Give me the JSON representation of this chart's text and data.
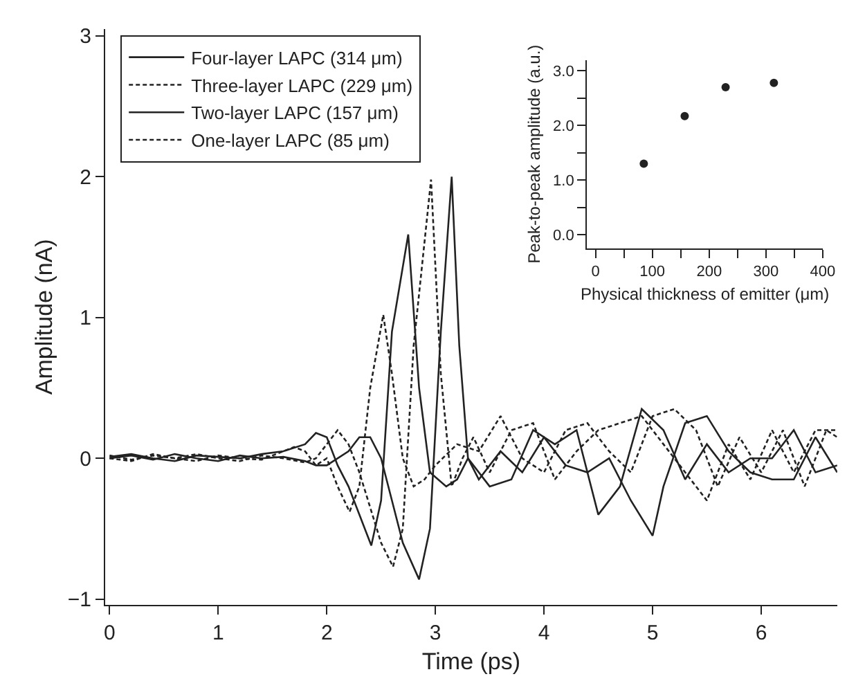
{
  "chart_data": [
    {
      "type": "line",
      "xlabel": "Time (ps)",
      "ylabel": "Amplitude (nA)",
      "xlim": [
        -0.04,
        6.7
      ],
      "ylim": [
        -1.04,
        3.05
      ],
      "xticks": [
        0,
        1,
        2,
        3,
        4,
        5,
        6
      ],
      "yticks": [
        {
          "value": -1,
          "label": "−1"
        },
        0,
        1,
        2,
        3
      ],
      "legend": "top left",
      "marker": "none",
      "series": [
        {
          "name": "Four-layer LAPC (314 μm)",
          "color": "#222222",
          "line_style": "solid",
          "x": [
            0,
            0.2,
            0.4,
            0.6,
            0.8,
            1.0,
            1.2,
            1.4,
            1.6,
            1.8,
            1.9,
            2.0,
            2.2,
            2.3,
            2.4,
            2.5,
            2.6,
            2.7,
            2.85,
            2.95,
            3.05,
            3.15,
            3.22,
            3.3,
            3.4,
            3.6,
            3.8,
            4.0,
            4.2,
            4.4,
            4.6,
            4.8,
            5.0,
            5.1,
            5.3,
            5.5,
            5.7,
            5.9,
            6.1,
            6.3,
            6.5,
            6.7
          ],
          "values": [
            0.0,
            0.02,
            -0.01,
            0.03,
            0.0,
            -0.02,
            0.02,
            0.0,
            0.01,
            -0.02,
            -0.05,
            -0.05,
            0.05,
            0.15,
            0.15,
            0.0,
            -0.3,
            -0.6,
            -0.86,
            -0.5,
            0.9,
            2.0,
            0.8,
            0.0,
            -0.15,
            0.05,
            -0.1,
            0.15,
            -0.05,
            -0.1,
            0.0,
            -0.3,
            -0.55,
            -0.2,
            0.25,
            0.3,
            0.05,
            -0.1,
            -0.15,
            -0.15,
            0.15,
            -0.1
          ]
        },
        {
          "name": "Three-layer LAPC (229 μm)",
          "color": "#222222",
          "line_style": "dashed",
          "x": [
            0,
            0.2,
            0.4,
            0.6,
            0.8,
            1.0,
            1.2,
            1.4,
            1.6,
            1.8,
            1.9,
            2.0,
            2.1,
            2.2,
            2.3,
            2.4,
            2.5,
            2.61,
            2.7,
            2.8,
            2.96,
            3.05,
            3.15,
            3.25,
            3.35,
            3.5,
            3.7,
            3.9,
            4.1,
            4.3,
            4.5,
            4.7,
            4.9,
            5.1,
            5.3,
            5.5,
            5.7,
            5.9,
            6.1,
            6.3,
            6.5,
            6.7
          ],
          "values": [
            0.02,
            -0.01,
            0.02,
            0.0,
            0.03,
            0.0,
            -0.02,
            0.02,
            0.0,
            -0.03,
            0.0,
            0.1,
            0.2,
            0.1,
            -0.1,
            -0.35,
            -0.6,
            -0.77,
            -0.5,
            0.8,
            1.98,
            0.6,
            -0.2,
            0.0,
            0.15,
            -0.1,
            0.2,
            0.25,
            -0.15,
            0.05,
            0.2,
            0.25,
            0.3,
            0.1,
            -0.1,
            -0.3,
            0.1,
            -0.15,
            0.2,
            -0.1,
            0.2,
            0.2
          ]
        },
        {
          "name": "Two-layer LAPC (157 μm)",
          "color": "#222222",
          "line_style": "solid",
          "x": [
            0,
            0.2,
            0.4,
            0.6,
            0.8,
            1.0,
            1.2,
            1.4,
            1.6,
            1.8,
            1.9,
            2.0,
            2.1,
            2.2,
            2.3,
            2.41,
            2.5,
            2.6,
            2.75,
            2.85,
            2.95,
            3.1,
            3.2,
            3.3,
            3.5,
            3.7,
            3.9,
            4.1,
            4.3,
            4.5,
            4.7,
            4.9,
            5.1,
            5.3,
            5.5,
            5.7,
            5.9,
            6.1,
            6.3,
            6.5,
            6.7
          ],
          "values": [
            0.01,
            0.03,
            0.0,
            -0.02,
            0.02,
            0.01,
            0.0,
            0.03,
            0.05,
            0.1,
            0.18,
            0.15,
            -0.05,
            -0.2,
            -0.4,
            -0.62,
            -0.3,
            0.9,
            1.59,
            0.5,
            -0.1,
            -0.2,
            -0.15,
            0.0,
            -0.2,
            -0.15,
            0.2,
            0.1,
            0.2,
            -0.4,
            -0.2,
            0.35,
            0.2,
            -0.15,
            0.1,
            -0.1,
            0.0,
            0.0,
            0.2,
            -0.1,
            -0.05
          ]
        },
        {
          "name": "One-layer LAPC (85 μm)",
          "color": "#222222",
          "line_style": "dashed",
          "x": [
            0,
            0.2,
            0.4,
            0.6,
            0.8,
            1.0,
            1.2,
            1.4,
            1.6,
            1.7,
            1.8,
            1.9,
            2.0,
            2.1,
            2.21,
            2.3,
            2.4,
            2.52,
            2.6,
            2.7,
            2.8,
            2.9,
            3.0,
            3.2,
            3.4,
            3.6,
            3.8,
            4.0,
            4.2,
            4.4,
            4.6,
            4.8,
            5.0,
            5.2,
            5.4,
            5.6,
            5.8,
            6.0,
            6.2,
            6.4,
            6.6,
            6.7
          ],
          "values": [
            0.0,
            -0.02,
            0.03,
            0.0,
            -0.02,
            0.02,
            0.0,
            -0.01,
            0.05,
            0.08,
            0.05,
            -0.05,
            0.0,
            -0.2,
            -0.38,
            -0.2,
            0.5,
            1.02,
            0.6,
            0.0,
            -0.2,
            -0.15,
            -0.05,
            0.1,
            0.05,
            0.3,
            0.0,
            -0.1,
            0.2,
            0.25,
            0.05,
            -0.1,
            0.3,
            0.35,
            0.2,
            -0.2,
            0.15,
            -0.1,
            0.2,
            -0.2,
            0.2,
            0.15
          ]
        }
      ]
    },
    {
      "type": "scatter",
      "xlabel": "Physical thickness of emitter (μm)",
      "ylabel": "Peak-to-peak amplitude (a.u.)",
      "xlim": [
        -15,
        400
      ],
      "ylim": [
        -0.25,
        3.2
      ],
      "xticks": [
        0,
        {
          "value": 50,
          "label": null
        },
        100,
        {
          "value": 150,
          "label": null
        },
        200,
        {
          "value": 250,
          "label": null
        },
        300,
        {
          "value": 350,
          "label": null
        },
        400
      ],
      "yticks": [
        {
          "value": 0,
          "label": "0.0"
        },
        {
          "value": 0.5,
          "label": null
        },
        {
          "value": 1,
          "label": "1.0"
        },
        {
          "value": 1.5,
          "label": null
        },
        {
          "value": 2,
          "label": "2.0"
        },
        {
          "value": 2.5,
          "label": null
        },
        {
          "value": 3,
          "label": "3.0"
        }
      ],
      "marker": "circle",
      "series": [
        {
          "color": "#222222",
          "x": [
            85,
            157,
            229,
            314
          ],
          "values": [
            1.3,
            2.17,
            2.7,
            2.78
          ]
        }
      ]
    }
  ]
}
